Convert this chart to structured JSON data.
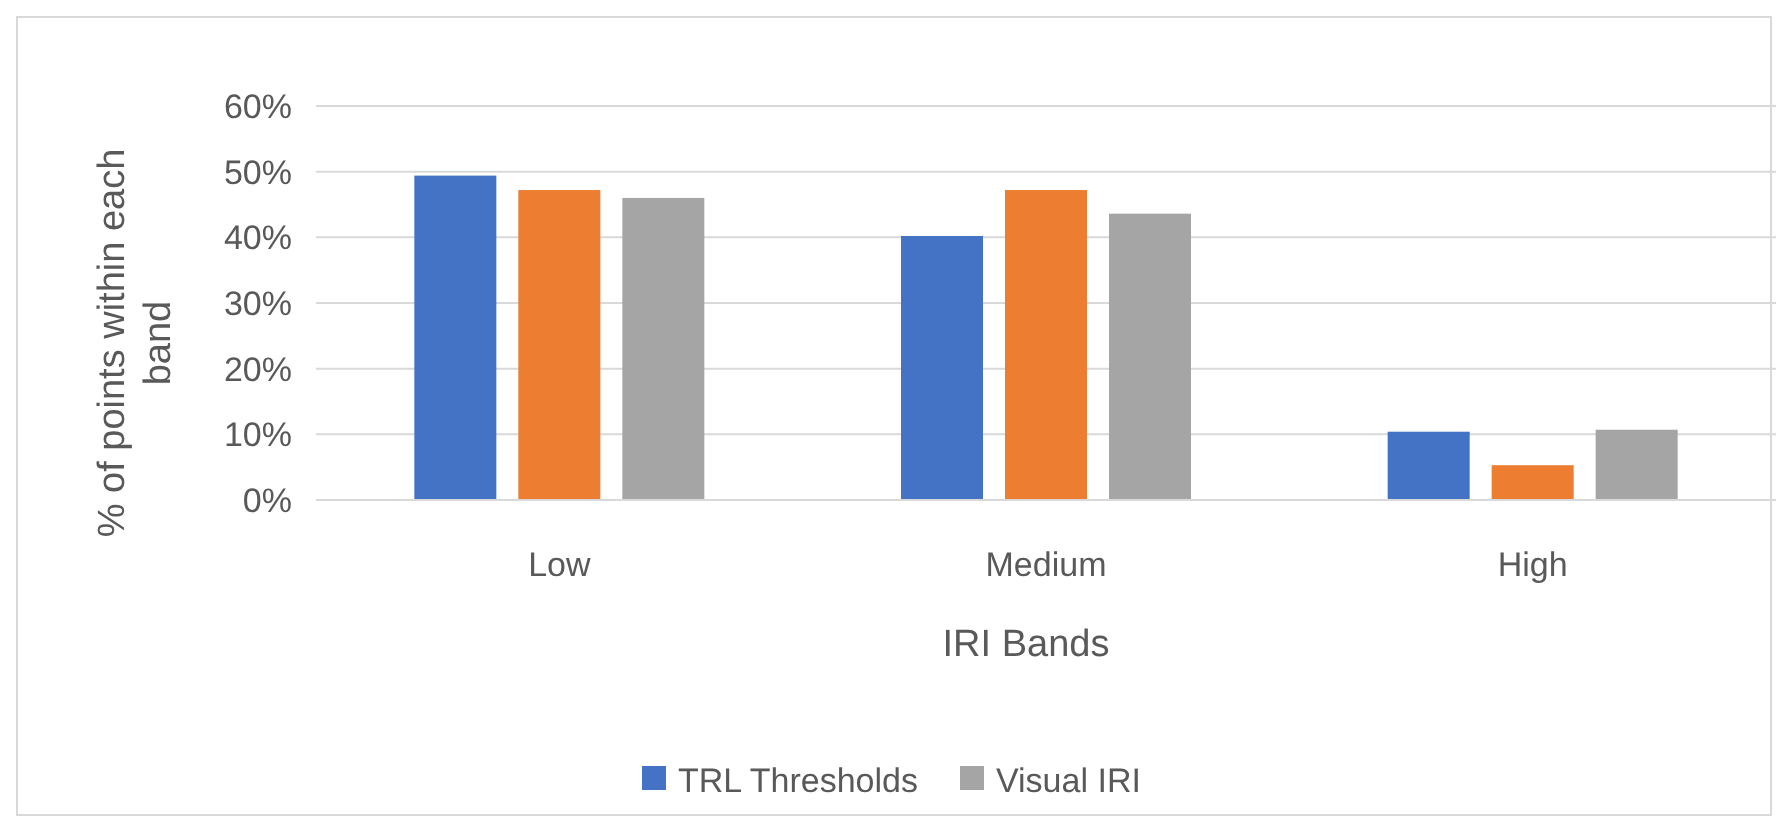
{
  "chart_data": {
    "type": "bar",
    "xlabel": "IRI Bands",
    "ylabel": "% of points within each band",
    "categories": [
      "Low",
      "Medium",
      "High"
    ],
    "series": [
      {
        "name": "TRL Thresholds",
        "color": "#4472c4",
        "values": [
          49.4,
          40.2,
          10.4
        ]
      },
      {
        "color": "#ed7d31",
        "values": [
          47.2,
          47.2,
          5.3
        ]
      },
      {
        "name": "Visual IRI",
        "color": "#a5a5a5",
        "values": [
          46,
          43.6,
          10.7
        ]
      }
    ],
    "ylim": [
      0,
      60
    ],
    "yticks": [
      {
        "value": 0,
        "label": "0%"
      },
      {
        "value": 10,
        "label": "10%"
      },
      {
        "value": 20,
        "label": "20%"
      },
      {
        "value": 30,
        "label": "30%"
      },
      {
        "value": 40,
        "label": "40%"
      },
      {
        "value": 50,
        "label": "50%"
      },
      {
        "value": 60,
        "label": "60%"
      }
    ],
    "grid": "y",
    "legend": "bottom"
  }
}
